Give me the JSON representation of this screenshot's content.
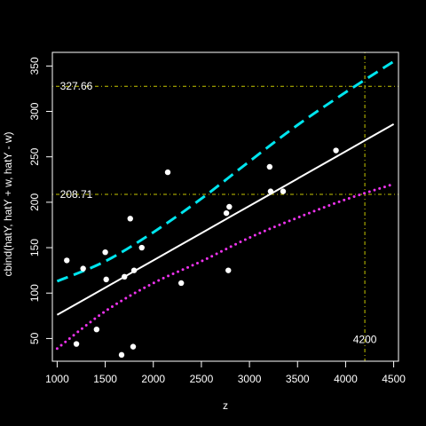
{
  "chart_data": {
    "type": "scatter",
    "title": "",
    "xlabel": "z",
    "ylabel": "cbind(hatY, hatY + w, hatY - w)",
    "xlim": [
      950,
      4550
    ],
    "ylim": [
      25,
      365
    ],
    "x_ticks": [
      1000,
      1500,
      2000,
      2500,
      3000,
      3500,
      4000,
      4500
    ],
    "y_ticks": [
      50,
      100,
      150,
      200,
      250,
      300,
      350
    ],
    "colors": {
      "background": "#000000",
      "axes": "#ffffff",
      "points": "#ffffff",
      "fit_line": "#ffffff",
      "upper_band": "#00e5ee",
      "lower_band": "#ee33ee",
      "reference_lines": "#c8c800"
    },
    "points": [
      {
        "x": 1100,
        "y": 136
      },
      {
        "x": 1200,
        "y": 44
      },
      {
        "x": 1270,
        "y": 127
      },
      {
        "x": 1410,
        "y": 60
      },
      {
        "x": 1500,
        "y": 145
      },
      {
        "x": 1510,
        "y": 115
      },
      {
        "x": 1670,
        "y": 32
      },
      {
        "x": 1700,
        "y": 118
      },
      {
        "x": 1760,
        "y": 182
      },
      {
        "x": 1790,
        "y": 41
      },
      {
        "x": 1800,
        "y": 125
      },
      {
        "x": 1880,
        "y": 150
      },
      {
        "x": 2150,
        "y": 233
      },
      {
        "x": 2290,
        "y": 111
      },
      {
        "x": 2760,
        "y": 188
      },
      {
        "x": 2780,
        "y": 125
      },
      {
        "x": 2790,
        "y": 195
      },
      {
        "x": 3210,
        "y": 239
      },
      {
        "x": 3220,
        "y": 212
      },
      {
        "x": 3350,
        "y": 212
      },
      {
        "x": 3900,
        "y": 257
      }
    ],
    "series": [
      {
        "role": "fit",
        "style": "solid",
        "x": [
          1000,
          1500,
          2000,
          2500,
          3000,
          3500,
          4000,
          4500
        ],
        "values": [
          76,
          106,
          136,
          166,
          196,
          226,
          256,
          286
        ]
      },
      {
        "role": "upper",
        "style": "long-dash",
        "x": [
          1000,
          1500,
          2000,
          2500,
          3000,
          3500,
          4000,
          4500
        ],
        "values": [
          113,
          135,
          167,
          204,
          245,
          285,
          321,
          355
        ]
      },
      {
        "role": "lower",
        "style": "dotted",
        "x": [
          1000,
          1500,
          2000,
          2500,
          3000,
          3500,
          4000,
          4500
        ],
        "values": [
          39,
          80,
          111,
          135,
          161,
          183,
          203,
          220
        ]
      }
    ],
    "reference_lines": [
      {
        "orientation": "horizontal",
        "value": 327.66,
        "label": "327.66"
      },
      {
        "orientation": "horizontal",
        "value": 208.71,
        "label": "208.71"
      },
      {
        "orientation": "vertical",
        "value": 4200,
        "label": "4200"
      }
    ]
  }
}
